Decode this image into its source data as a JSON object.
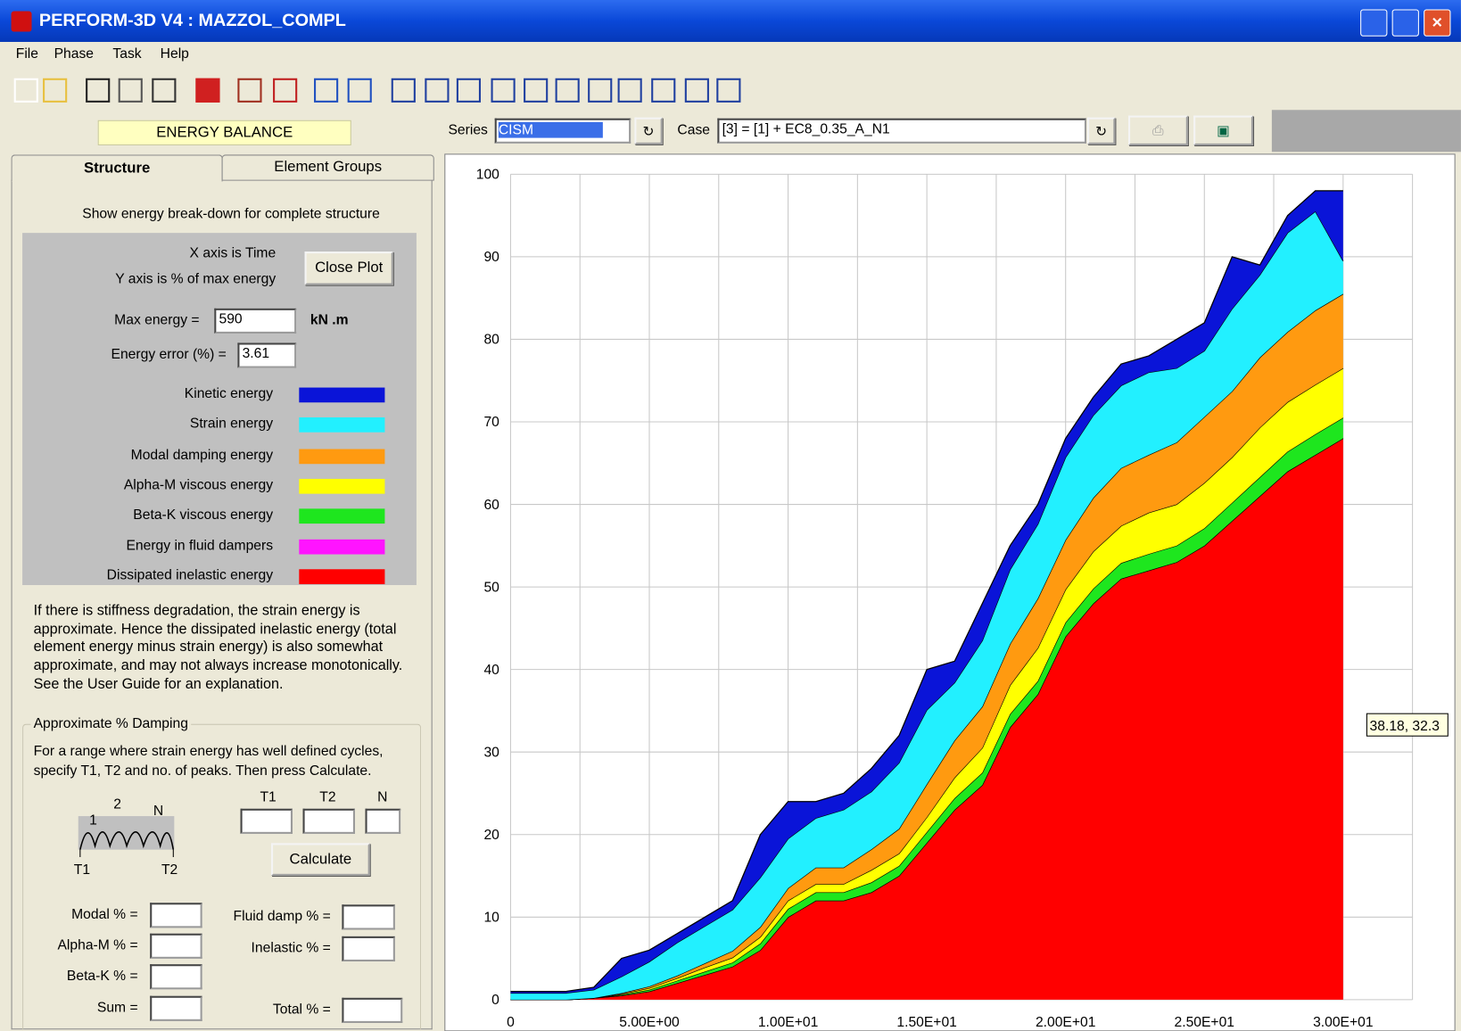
{
  "window": {
    "title": "PERFORM-3D V4 : MAZZOL_COMPL"
  },
  "menu": [
    "File",
    "Phase",
    "Task",
    "Help"
  ],
  "panel": {
    "header": "ENERGY BALANCE",
    "tabs": [
      "Structure",
      "Element Groups"
    ],
    "description": "Show energy break-down for complete structure",
    "x_axis_note": "X axis is Time",
    "y_axis_note": "Y axis is % of max energy",
    "close_button": "Close Plot",
    "max_energy_label": "Max energy =",
    "max_energy_value": "590",
    "max_energy_unit": "kN .m",
    "energy_error_label": "Energy error (%) =",
    "energy_error_value": "3.61",
    "note_lines": [
      "If there is stiffness degradation, the strain energy is",
      "approximate. Hence the dissipated inelastic energy (total",
      "element energy minus strain energy) is also somewhat",
      "approximate, and may not always increase monotonically.",
      "See the User Guide for an explanation."
    ],
    "damping": {
      "title": "Approximate % Damping",
      "lines": [
        "For a range where strain energy has well defined cycles,",
        "specify T1, T2 and no. of peaks. Then press Calculate."
      ],
      "diagram_labels": [
        "1",
        "2",
        "N",
        "T1",
        "T2"
      ],
      "field_heads": [
        "T1",
        "T2",
        "N"
      ],
      "button": "Calculate",
      "left_fields": [
        "Modal % =",
        "Alpha-M % =",
        "Beta-K % =",
        "Sum ="
      ],
      "right_fields": [
        "Fluid damp % =",
        "Inelastic % ="
      ],
      "total_field": "Total % ="
    }
  },
  "toolbar": {
    "series_label": "Series",
    "series_value": "CISM",
    "case_label": "Case",
    "case_value": "[3] = [1] + EC8_0.35_A_N1"
  },
  "chart_data": {
    "type": "area",
    "stacked": true,
    "x": [
      0,
      1,
      2,
      3,
      4,
      5,
      6,
      7,
      8,
      9,
      10,
      11,
      12,
      13,
      14,
      15,
      16,
      17,
      18,
      19,
      20,
      21,
      22,
      23,
      24,
      25,
      26,
      27,
      28,
      29,
      30
    ],
    "series": [
      {
        "name": "Kinetic energy",
        "color": "#0a14d8",
        "values": [
          0.2,
          0.2,
          0.2,
          0.3,
          2.2,
          1.4,
          1.1,
          1.1,
          1.1,
          5.2,
          4.5,
          2,
          2,
          2.8,
          3.3,
          4.9,
          2.6,
          4.5,
          2.9,
          2.4,
          2.3,
          2.2,
          2.6,
          2,
          3.5,
          3.4,
          6.3,
          1.2,
          2.1,
          2.5,
          8.5
        ]
      },
      {
        "name": "Strain energy",
        "color": "#22f0ff",
        "values": [
          0.8,
          0.8,
          0.8,
          1,
          2,
          3,
          4,
          4.5,
          5,
          6,
          6,
          6,
          7,
          7,
          8,
          9,
          7,
          8,
          9,
          9,
          10,
          10,
          10,
          10,
          9,
          8,
          10,
          10,
          12,
          12,
          4
        ]
      },
      {
        "name": "Modal damping energy",
        "color": "#ff9a10",
        "values": [
          0,
          0,
          0,
          0,
          0.1,
          0.2,
          0.3,
          0.5,
          0.8,
          1.2,
          1.5,
          2,
          2,
          2.5,
          3,
          4,
          4.5,
          5,
          5,
          6,
          6,
          6.5,
          7,
          7,
          7.5,
          8,
          8,
          8.5,
          8.5,
          9,
          9
        ]
      },
      {
        "name": "Alpha-M viscous energy",
        "color": "#ffff00",
        "values": [
          0,
          0,
          0,
          0,
          0.1,
          0.2,
          0.3,
          0.5,
          0.6,
          0.8,
          1,
          1,
          1,
          1.5,
          1.5,
          1.8,
          2.5,
          3,
          3.5,
          4,
          4,
          4.5,
          4.5,
          5,
          5,
          5.5,
          5.5,
          6,
          6,
          6,
          6
        ]
      },
      {
        "name": "Beta-K viscous energy",
        "color": "#1ee61e",
        "values": [
          0,
          0,
          0,
          0,
          0.1,
          0.2,
          0.3,
          0.4,
          0.5,
          0.8,
          1,
          1,
          1,
          1.2,
          1.2,
          1.3,
          1.4,
          1.5,
          1.6,
          1.6,
          1.7,
          1.8,
          1.9,
          2,
          2,
          2.1,
          2.2,
          2.3,
          2.4,
          2.5,
          2.5
        ]
      },
      {
        "name": "Energy in fluid dampers",
        "color": "#ff14ff",
        "values": [
          0,
          0,
          0,
          0,
          0,
          0,
          0,
          0,
          0,
          0,
          0,
          0,
          0,
          0,
          0,
          0,
          0,
          0,
          0,
          0,
          0,
          0,
          0,
          0,
          0,
          0,
          0,
          0,
          0,
          0,
          0
        ]
      },
      {
        "name": "Dissipated inelastic energy",
        "color": "#ff0000",
        "values": [
          0,
          0,
          0,
          0.2,
          0.5,
          1,
          2,
          3,
          4,
          6,
          10,
          12,
          12,
          13,
          15,
          19,
          23,
          26,
          33,
          37,
          44,
          48,
          51,
          52,
          53,
          55,
          58,
          61,
          64,
          66,
          68
        ]
      }
    ],
    "xlim": [
      0,
      32.5
    ],
    "xticks": [
      0,
      {
        "value": 2.5,
        "label": null
      },
      {
        "value": 5,
        "label": "5.00E+00"
      },
      {
        "value": 7.5,
        "label": null
      },
      {
        "value": 10,
        "label": "1.00E+01"
      },
      {
        "value": 12.5,
        "label": null
      },
      {
        "value": 15,
        "label": "1.50E+01"
      },
      {
        "value": 17.5,
        "label": null
      },
      {
        "value": 20,
        "label": "2.00E+01"
      },
      {
        "value": 22.5,
        "label": null
      },
      {
        "value": 25,
        "label": "2.50E+01"
      },
      {
        "value": 27.5,
        "label": null
      },
      {
        "value": 30,
        "label": "3.00E+01"
      },
      {
        "value": 32.5,
        "label": null
      }
    ],
    "ylim": [
      0,
      100
    ],
    "yticks": [
      0,
      10,
      20,
      30,
      40,
      50,
      60,
      70,
      80,
      90,
      100
    ],
    "grid": true,
    "annotations": [
      "38.18, 32.3"
    ]
  }
}
